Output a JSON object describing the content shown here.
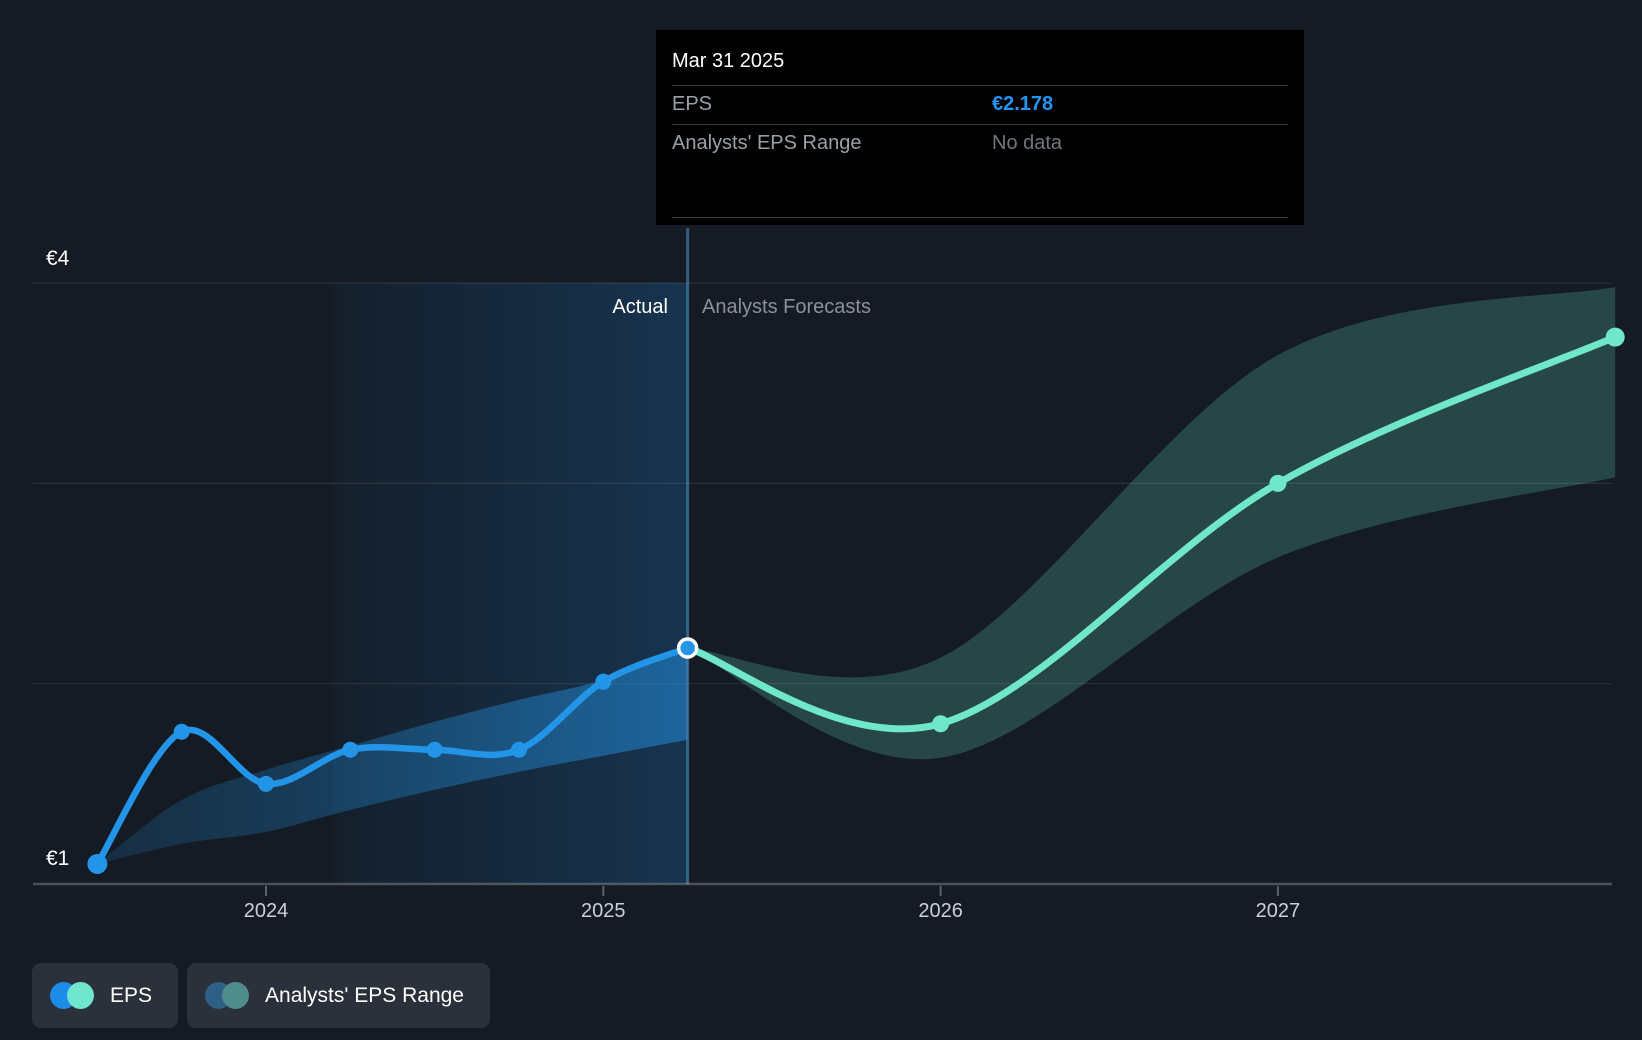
{
  "y_axis": {
    "top_label": "€4",
    "bottom_label": "€1"
  },
  "phase_labels": {
    "actual": "Actual",
    "forecast": "Analysts Forecasts"
  },
  "tooltip": {
    "date": "Mar 31 2025",
    "rows": [
      {
        "label": "EPS",
        "value": "€2.178"
      },
      {
        "label": "Analysts' EPS Range",
        "value": "No data"
      }
    ]
  },
  "legend": {
    "eps": {
      "label": "EPS",
      "dots": [
        "#1d8ce8",
        "#6fe5cd"
      ]
    },
    "range": {
      "label": "Analysts' EPS Range",
      "dots": [
        "#2d6084",
        "#4f8d8d"
      ]
    }
  },
  "colors": {
    "background": "#141b24",
    "actual_line": "#2395e8",
    "forecast_line": "#6fe7c8",
    "tooltip_value": "#2196f3",
    "divider": "#5294c6"
  },
  "chart_data": {
    "type": "line",
    "unit": "€",
    "ylim": [
      1,
      4
    ],
    "y_gridline_values": [
      1,
      2,
      3,
      4
    ],
    "x_ticks": [
      {
        "label": "2024",
        "t": 2024
      },
      {
        "label": "2025",
        "t": 2025
      },
      {
        "label": "2026",
        "t": 2026
      },
      {
        "label": "2027",
        "t": 2027
      }
    ],
    "divider_t": 2025.25,
    "highlight_range": {
      "from_t": 2024.2,
      "to_t": 2025.25
    },
    "series": [
      {
        "name": "EPS",
        "role": "actual",
        "color": "#2395e8",
        "points": [
          {
            "date": "Jun 30 2023",
            "t": 2023.5,
            "value": 1.1,
            "marker": true,
            "r": 10
          },
          {
            "date": "Sep 30 2023",
            "t": 2023.75,
            "value": 1.76,
            "marker": true,
            "r": 8
          },
          {
            "date": "Dec 31 2023",
            "t": 2024.0,
            "value": 1.5,
            "marker": true,
            "r": 8
          },
          {
            "date": "Mar 31 2024",
            "t": 2024.25,
            "value": 1.67,
            "marker": true,
            "r": 8
          },
          {
            "date": "Jun 30 2024",
            "t": 2024.5,
            "value": 1.67,
            "marker": true,
            "r": 8
          },
          {
            "date": "Sep 30 2024",
            "t": 2024.75,
            "value": 1.67,
            "marker": true,
            "r": 8
          },
          {
            "date": "Dec 31 2024",
            "t": 2025.0,
            "value": 2.01,
            "marker": true,
            "r": 8
          },
          {
            "date": "Mar 31 2025",
            "t": 2025.25,
            "value": 2.178,
            "marker": true,
            "r": 9,
            "ring": true
          }
        ]
      },
      {
        "name": "EPS analysts forecast",
        "role": "forecast",
        "color": "#6fe7c8",
        "points": [
          {
            "date": "Mar 31 2025",
            "t": 2025.25,
            "value": 2.178,
            "marker": false
          },
          {
            "date": "Dec 31 2025",
            "t": 2026.0,
            "value": 1.8,
            "marker": true,
            "r": 8.5
          },
          {
            "date": "Dec 31 2026",
            "t": 2027.0,
            "value": 3.0,
            "marker": true,
            "r": 8.5
          },
          {
            "date": "Dec 31 2027",
            "t": 2028.0,
            "value": 3.73,
            "marker": true,
            "r": 9.5
          }
        ]
      }
    ],
    "bands": [
      {
        "name": "Analysts' EPS Range (actual period)",
        "role": "actual",
        "color": "#2395e8",
        "points": [
          {
            "t": 2023.5,
            "low": 1.1,
            "high": 1.1
          },
          {
            "t": 2023.75,
            "low": 1.2,
            "high": 1.42
          },
          {
            "t": 2024.0,
            "low": 1.26,
            "high": 1.57
          },
          {
            "t": 2024.25,
            "low": 1.37,
            "high": 1.69
          },
          {
            "t": 2024.5,
            "low": 1.47,
            "high": 1.81
          },
          {
            "t": 2024.75,
            "low": 1.56,
            "high": 1.92
          },
          {
            "t": 2025.0,
            "low": 1.64,
            "high": 2.02
          },
          {
            "t": 2025.25,
            "low": 1.72,
            "high": 2.19
          }
        ]
      },
      {
        "name": "Analysts' EPS Range (forecast)",
        "role": "forecast",
        "color": "#6fe7c8",
        "points": [
          {
            "t": 2025.25,
            "low": 2.178,
            "high": 2.178
          },
          {
            "t": 2026.0,
            "low": 1.63,
            "high": 2.13
          },
          {
            "t": 2027.0,
            "low": 2.63,
            "high": 3.64
          },
          {
            "t": 2028.0,
            "low": 3.03,
            "high": 3.98
          }
        ]
      }
    ]
  }
}
